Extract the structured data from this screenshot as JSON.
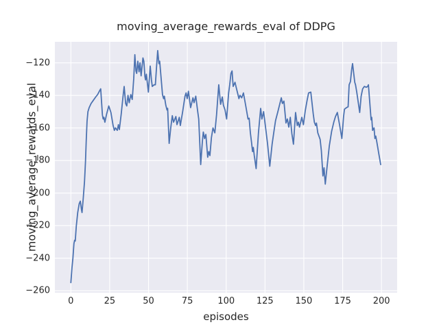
{
  "chart": {
    "title": "moving_average_rewards_eval of DDPG",
    "xlabel": "episodes",
    "ylabel": "moving_average_rewards_eval"
  },
  "chart_data": {
    "type": "line",
    "title": "moving_average_rewards_eval of DDPG",
    "xlabel": "episodes",
    "ylabel": "moving_average_rewards_eval",
    "xlim": [
      -10.3,
      210.1
    ],
    "ylim": [
      -261.2,
      -107.1
    ],
    "x_ticks": [
      0,
      25,
      50,
      75,
      100,
      125,
      150,
      175,
      200
    ],
    "y_ticks": [
      -120,
      -140,
      -160,
      -180,
      -200,
      -220,
      -240,
      -260
    ],
    "grid": true,
    "legend": false,
    "style": {
      "fig_bg": "#ffffff",
      "plot_bg": "#eaeaf2",
      "grid_color": "#ffffff",
      "text_color": "#262626",
      "line_color": "#4c72b0",
      "line_width": 1.8
    },
    "series": [
      {
        "name": "moving_average_rewards_eval",
        "color": "#4c72b0",
        "points": [
          [
            0,
            -255
          ],
          [
            0.7,
            -246
          ],
          [
            1.3,
            -240
          ],
          [
            2,
            -231
          ],
          [
            2.4,
            -229
          ],
          [
            2.8,
            -229.5
          ],
          [
            3.5,
            -220.5
          ],
          [
            4.4,
            -212
          ],
          [
            5.4,
            -206.5
          ],
          [
            6.1,
            -205
          ],
          [
            6.9,
            -210.5
          ],
          [
            7.2,
            -212
          ],
          [
            8,
            -203
          ],
          [
            8.8,
            -193
          ],
          [
            9.4,
            -181
          ],
          [
            9.9,
            -168
          ],
          [
            10.4,
            -156
          ],
          [
            11,
            -150
          ],
          [
            11.8,
            -147.5
          ],
          [
            13,
            -145
          ],
          [
            14.5,
            -143
          ],
          [
            16,
            -141
          ],
          [
            17.2,
            -139.5
          ],
          [
            18.3,
            -137.5
          ],
          [
            19.2,
            -136
          ],
          [
            20.3,
            -152
          ],
          [
            20.8,
            -154.5
          ],
          [
            21.3,
            -153.5
          ],
          [
            21.9,
            -156.5
          ],
          [
            23,
            -151.5
          ],
          [
            24.4,
            -146.5
          ],
          [
            25.8,
            -150.5
          ],
          [
            27.2,
            -158.5
          ],
          [
            28,
            -161.5
          ],
          [
            28.7,
            -160
          ],
          [
            29.9,
            -161.5
          ],
          [
            30.6,
            -158
          ],
          [
            31.2,
            -161
          ],
          [
            32.4,
            -151.5
          ],
          [
            33.6,
            -140.5
          ],
          [
            34.3,
            -134.5
          ],
          [
            35.3,
            -145
          ],
          [
            36,
            -146.5
          ],
          [
            36.8,
            -140
          ],
          [
            37.6,
            -144.5
          ],
          [
            38.6,
            -139.5
          ],
          [
            39.5,
            -142.5
          ],
          [
            40.5,
            -129.5
          ],
          [
            41.2,
            -115
          ],
          [
            41.9,
            -125
          ],
          [
            42.4,
            -126.5
          ],
          [
            43.1,
            -119
          ],
          [
            43.9,
            -125.5
          ],
          [
            44.5,
            -120
          ],
          [
            45.2,
            -128
          ],
          [
            46.4,
            -117
          ],
          [
            47,
            -119
          ],
          [
            47.7,
            -128.5
          ],
          [
            48.1,
            -130.5
          ],
          [
            48.6,
            -127
          ],
          [
            49.2,
            -132
          ],
          [
            49.9,
            -138
          ],
          [
            51.1,
            -122
          ],
          [
            51.9,
            -130.5
          ],
          [
            52.4,
            -134.5
          ],
          [
            53.6,
            -133.5
          ],
          [
            54.4,
            -133.5
          ],
          [
            55.2,
            -122
          ],
          [
            55.9,
            -112.5
          ],
          [
            56.7,
            -120.5
          ],
          [
            57.2,
            -119
          ],
          [
            58.2,
            -130.5
          ],
          [
            59,
            -139.5
          ],
          [
            59.7,
            -142
          ],
          [
            60.2,
            -140.5
          ],
          [
            61.1,
            -146
          ],
          [
            61.9,
            -149
          ],
          [
            62.3,
            -148
          ],
          [
            63.3,
            -169.5
          ],
          [
            64.3,
            -160
          ],
          [
            65.3,
            -152.5
          ],
          [
            66.1,
            -156.5
          ],
          [
            67.6,
            -153
          ],
          [
            68.3,
            -158
          ],
          [
            69.8,
            -153.5
          ],
          [
            70.5,
            -158.5
          ],
          [
            72,
            -150
          ],
          [
            73.5,
            -140.5
          ],
          [
            74.2,
            -138.5
          ],
          [
            74.9,
            -142
          ],
          [
            75.7,
            -137.5
          ],
          [
            77.1,
            -147.5
          ],
          [
            78.6,
            -141.5
          ],
          [
            79.3,
            -144.5
          ],
          [
            80.4,
            -140.5
          ],
          [
            81.6,
            -149.5
          ],
          [
            82.3,
            -154.5
          ],
          [
            83.6,
            -182.5
          ],
          [
            84.7,
            -168
          ],
          [
            85.3,
            -162.5
          ],
          [
            86.1,
            -166.5
          ],
          [
            86.9,
            -164
          ],
          [
            88.1,
            -178
          ],
          [
            88.8,
            -174.5
          ],
          [
            89.5,
            -177
          ],
          [
            90.5,
            -166
          ],
          [
            91.5,
            -160
          ],
          [
            92.7,
            -163
          ],
          [
            93.8,
            -152
          ],
          [
            95.2,
            -133.5
          ],
          [
            96.4,
            -145.5
          ],
          [
            97.5,
            -141
          ],
          [
            98.2,
            -146
          ],
          [
            99.3,
            -149
          ],
          [
            100.3,
            -154.5
          ],
          [
            101.6,
            -138.5
          ],
          [
            102.3,
            -133.5
          ],
          [
            103.1,
            -126.5
          ],
          [
            103.8,
            -125
          ],
          [
            104.5,
            -134.5
          ],
          [
            105.7,
            -132
          ],
          [
            106.3,
            -134.5
          ],
          [
            107.7,
            -140
          ],
          [
            108.2,
            -142
          ],
          [
            108.9,
            -140
          ],
          [
            110,
            -141.5
          ],
          [
            111.1,
            -138.5
          ],
          [
            112.6,
            -146.5
          ],
          [
            114.1,
            -154.5
          ],
          [
            114.8,
            -154
          ],
          [
            115.6,
            -163
          ],
          [
            116.3,
            -168.5
          ],
          [
            117,
            -174.5
          ],
          [
            117.5,
            -172
          ],
          [
            118.1,
            -177
          ],
          [
            119.3,
            -185
          ],
          [
            120.8,
            -163
          ],
          [
            122.2,
            -148
          ],
          [
            123,
            -154.5
          ],
          [
            124.1,
            -150
          ],
          [
            125.2,
            -158.5
          ],
          [
            126.6,
            -169.5
          ],
          [
            128.1,
            -183.5
          ],
          [
            129.6,
            -170
          ],
          [
            131.1,
            -160
          ],
          [
            131.8,
            -155.5
          ],
          [
            133.3,
            -150
          ],
          [
            135.5,
            -141.5
          ],
          [
            136.2,
            -145
          ],
          [
            137.2,
            -143.5
          ],
          [
            138.5,
            -157
          ],
          [
            139.4,
            -154.5
          ],
          [
            140.3,
            -159.5
          ],
          [
            141.3,
            -153.5
          ],
          [
            142.3,
            -163.5
          ],
          [
            143.3,
            -170
          ],
          [
            144.7,
            -150.5
          ],
          [
            145.8,
            -158.5
          ],
          [
            146.5,
            -156.5
          ],
          [
            147.2,
            -159.5
          ],
          [
            148.7,
            -153.5
          ],
          [
            149.7,
            -158
          ],
          [
            150.9,
            -149.5
          ],
          [
            152,
            -143.5
          ],
          [
            153.1,
            -138.5
          ],
          [
            154.5,
            -138
          ],
          [
            156.1,
            -151.5
          ],
          [
            156.8,
            -156.5
          ],
          [
            157.6,
            -158.5
          ],
          [
            158.1,
            -157
          ],
          [
            159,
            -163
          ],
          [
            160.5,
            -167
          ],
          [
            161.3,
            -174
          ],
          [
            162.3,
            -189.5
          ],
          [
            163,
            -184.5
          ],
          [
            163.8,
            -194.5
          ],
          [
            165,
            -183.5
          ],
          [
            166.4,
            -171
          ],
          [
            167.9,
            -162
          ],
          [
            169.3,
            -156.5
          ],
          [
            170.4,
            -153
          ],
          [
            171.6,
            -150.5
          ],
          [
            173,
            -158
          ],
          [
            174.5,
            -166.5
          ],
          [
            175.6,
            -153
          ],
          [
            176.2,
            -148.5
          ],
          [
            177.5,
            -147.5
          ],
          [
            178.5,
            -147
          ],
          [
            179.2,
            -133.5
          ],
          [
            180,
            -131.5
          ],
          [
            180.8,
            -124
          ],
          [
            181.4,
            -120.5
          ],
          [
            182.2,
            -127
          ],
          [
            182.8,
            -132
          ],
          [
            183.3,
            -133.5
          ],
          [
            184.1,
            -138
          ],
          [
            186,
            -150.5
          ],
          [
            186.9,
            -140.5
          ],
          [
            187.9,
            -136
          ],
          [
            189,
            -134.5
          ],
          [
            190.2,
            -135
          ],
          [
            191.1,
            -134.5
          ],
          [
            191.6,
            -133.5
          ],
          [
            192.5,
            -145
          ],
          [
            193.3,
            -155
          ],
          [
            193.7,
            -153.5
          ],
          [
            194.3,
            -161.5
          ],
          [
            195.2,
            -160
          ],
          [
            195.8,
            -166.5
          ],
          [
            196.3,
            -165
          ],
          [
            197,
            -168.5
          ],
          [
            198.4,
            -176.5
          ],
          [
            199.5,
            -182.5
          ]
        ]
      }
    ]
  }
}
